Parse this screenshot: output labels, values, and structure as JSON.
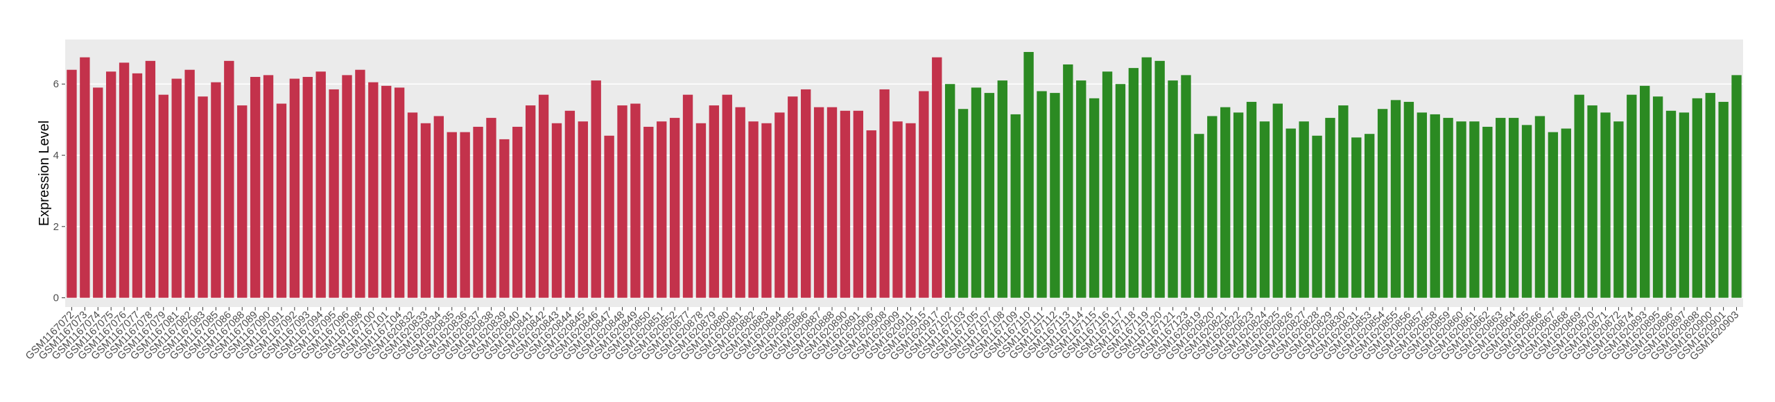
{
  "chart_data": {
    "type": "bar",
    "y_label": "Expression Level",
    "ylim": [
      -0.26,
      7.25
    ],
    "yticks": [
      0,
      2,
      4,
      6
    ],
    "grid": true,
    "series": [
      {
        "color": "#c3324b",
        "categories": [
          "GSM1167072",
          "GSM1167073",
          "GSM1167074",
          "GSM1167075",
          "GSM1167076",
          "GSM1167077",
          "GSM1167078",
          "GSM1167079",
          "GSM1167081",
          "GSM1167082",
          "GSM1167083",
          "GSM1167085",
          "GSM1167086",
          "GSM1167088",
          "GSM1167089",
          "GSM1167090",
          "GSM1167091",
          "GSM1167092",
          "GSM1167093",
          "GSM1167094",
          "GSM1167095",
          "GSM1167096",
          "GSM1167098",
          "GSM1167100",
          "GSM1167101",
          "GSM1167104",
          "GSM1620832",
          "GSM1620833",
          "GSM1620834",
          "GSM1620835",
          "GSM1620836",
          "GSM1620837",
          "GSM1620838",
          "GSM1620839",
          "GSM1620840",
          "GSM1620841",
          "GSM1620842",
          "GSM1620843",
          "GSM1620844",
          "GSM1620845",
          "GSM1620846",
          "GSM1620847",
          "GSM1620848",
          "GSM1620849",
          "GSM1620850",
          "GSM1620851",
          "GSM1620852",
          "GSM1620877",
          "GSM1620878",
          "GSM1620879",
          "GSM1620880",
          "GSM1620881",
          "GSM1620882",
          "GSM1620883",
          "GSM1620884",
          "GSM1620885",
          "GSM1620886",
          "GSM1620887",
          "GSM1620888",
          "GSM1620890",
          "GSM1620891",
          "GSM1620906",
          "GSM1620908",
          "GSM1620909",
          "GSM1620911",
          "GSM1620915",
          "GSM1620917"
        ],
        "values": [
          6.4,
          6.75,
          5.9,
          6.35,
          6.6,
          6.3,
          6.65,
          5.7,
          6.15,
          6.4,
          5.65,
          6.05,
          6.65,
          5.4,
          6.2,
          6.25,
          5.45,
          6.15,
          6.2,
          6.35,
          5.85,
          6.25,
          6.4,
          6.05,
          5.95,
          5.9,
          5.2,
          4.9,
          5.1,
          4.65,
          4.65,
          4.8,
          5.05,
          4.45,
          4.8,
          5.4,
          5.7,
          4.9,
          5.25,
          4.95,
          6.1,
          4.55,
          5.4,
          5.45,
          4.8,
          4.95,
          5.05,
          5.7,
          4.9,
          5.4,
          5.7,
          5.35,
          4.95,
          4.9,
          5.2,
          5.65,
          5.85,
          5.35,
          5.35,
          5.25,
          5.25,
          4.7,
          5.85,
          4.95,
          4.9,
          5.8,
          6.75
        ]
      },
      {
        "color": "#2b8a22",
        "categories": [
          "GSM1167102",
          "GSM1167103",
          "GSM1167105",
          "GSM1167107",
          "GSM1167108",
          "GSM1167109",
          "GSM1167110",
          "GSM1167111",
          "GSM1167112",
          "GSM1167113",
          "GSM1167114",
          "GSM1167115",
          "GSM1167116",
          "GSM1167117",
          "GSM1167118",
          "GSM1167119",
          "GSM1167120",
          "GSM1167121",
          "GSM1167123",
          "GSM1620819",
          "GSM1620820",
          "GSM1620821",
          "GSM1620822",
          "GSM1620823",
          "GSM1620824",
          "GSM1620825",
          "GSM1620826",
          "GSM1620827",
          "GSM1620828",
          "GSM1620829",
          "GSM1620830",
          "GSM1620831",
          "GSM1620853",
          "GSM1620854",
          "GSM1620855",
          "GSM1620856",
          "GSM1620857",
          "GSM1620858",
          "GSM1620859",
          "GSM1620860",
          "GSM1620861",
          "GSM1620862",
          "GSM1620863",
          "GSM1620864",
          "GSM1620865",
          "GSM1620866",
          "GSM1620867",
          "GSM1620868",
          "GSM1620869",
          "GSM1620870",
          "GSM1620871",
          "GSM1620872",
          "GSM1620874",
          "GSM1620893",
          "GSM1620895",
          "GSM1620896",
          "GSM1620897",
          "GSM1620898",
          "GSM1620900",
          "GSM1620901",
          "GSM1620903"
        ],
        "values": [
          6.0,
          5.3,
          5.9,
          5.75,
          6.1,
          5.15,
          6.9,
          5.8,
          5.75,
          6.55,
          6.1,
          5.6,
          6.35,
          6.0,
          6.45,
          6.75,
          6.65,
          6.1,
          6.25,
          4.6,
          5.1,
          5.35,
          5.2,
          5.5,
          4.95,
          5.45,
          4.75,
          4.95,
          4.55,
          5.05,
          5.4,
          4.5,
          4.6,
          5.3,
          5.55,
          5.5,
          5.2,
          5.15,
          5.05,
          4.95,
          4.95,
          4.8,
          5.05,
          5.05,
          4.85,
          5.1,
          4.65,
          4.75,
          5.7,
          5.4,
          5.2,
          4.95,
          5.7,
          5.95,
          5.65,
          5.25,
          5.2,
          5.6,
          5.75,
          5.5,
          6.25
        ]
      }
    ]
  }
}
